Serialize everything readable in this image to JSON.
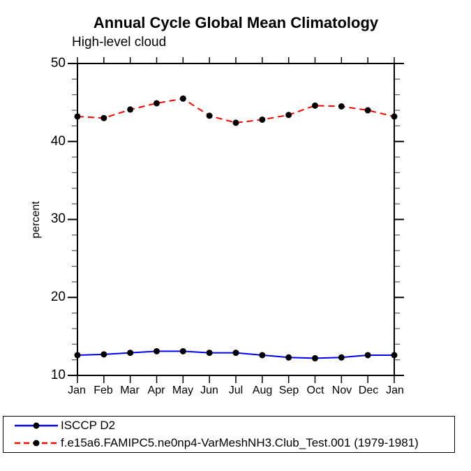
{
  "chart_data": {
    "type": "line",
    "title": "Annual Cycle Global Mean Climatology",
    "subtitle": "High-level cloud",
    "ylabel": "percent",
    "ylim": [
      10,
      50
    ],
    "major_tick_step": 10,
    "minor_tick_step": 2,
    "grid": "off",
    "legend_position": "bottom-left",
    "categories": [
      "Jan",
      "Feb",
      "Mar",
      "Apr",
      "May",
      "Jun",
      "Jul",
      "Aug",
      "Sep",
      "Oct",
      "Nov",
      "Dec",
      "Jan"
    ],
    "yticks": [
      "50",
      "40",
      "30",
      "20",
      "10"
    ],
    "marker_color": "#000000",
    "series": [
      {
        "name": "ISCCP D2",
        "color": "#0000ee",
        "line_style": "solid",
        "values": [
          12.6,
          12.7,
          12.9,
          13.1,
          13.1,
          12.9,
          12.9,
          12.6,
          12.3,
          12.2,
          12.3,
          12.6,
          12.6
        ]
      },
      {
        "name": "f.e15a6.FAMIPC5.ne0np4-VarMeshNH3.Club_Test.001 (1979-1981)",
        "color": "#ff0000",
        "line_style": "dashed",
        "values": [
          43.2,
          43.0,
          44.1,
          44.9,
          45.5,
          43.3,
          42.4,
          42.8,
          43.4,
          44.6,
          44.5,
          44.0,
          43.2
        ]
      }
    ]
  }
}
